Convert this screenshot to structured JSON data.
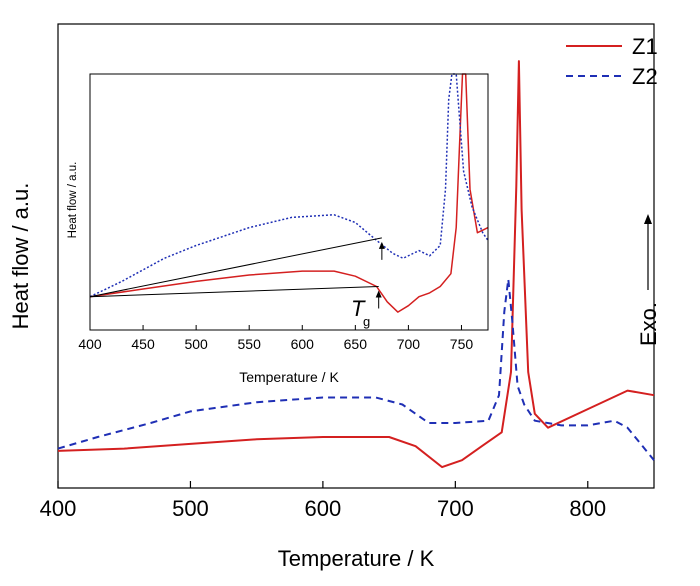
{
  "chart_data": [
    {
      "type": "line",
      "title": "",
      "xlabel": "Temperature / K",
      "ylabel": "Heat flow / a.u.",
      "xlim": [
        400,
        850
      ],
      "ylim": [
        0,
        100
      ],
      "x_ticks": [
        "400",
        "500",
        "600",
        "700",
        "800"
      ],
      "legend": {
        "position": "top-right"
      },
      "annotation": {
        "text": "Exo.",
        "arrow": "up"
      },
      "series": [
        {
          "name": "Z1",
          "color": "#d42020",
          "dash": "solid",
          "points": [
            [
              400,
              8
            ],
            [
              450,
              8.5
            ],
            [
              500,
              9.5
            ],
            [
              550,
              10.5
            ],
            [
              600,
              11
            ],
            [
              650,
              11
            ],
            [
              670,
              9
            ],
            [
              690,
              4.5
            ],
            [
              705,
              6
            ],
            [
              720,
              9
            ],
            [
              735,
              12
            ],
            [
              742,
              25
            ],
            [
              746,
              65
            ],
            [
              748,
              92
            ],
            [
              750,
              60
            ],
            [
              755,
              25
            ],
            [
              760,
              16
            ],
            [
              770,
              13
            ],
            [
              800,
              17
            ],
            [
              830,
              21
            ],
            [
              850,
              20
            ]
          ]
        },
        {
          "name": "Z2",
          "color": "#1f2fb5",
          "dash": "dashed",
          "points": [
            [
              400,
              8.5
            ],
            [
              430,
              11
            ],
            [
              470,
              14
            ],
            [
              500,
              16.5
            ],
            [
              550,
              18.5
            ],
            [
              600,
              19.5
            ],
            [
              640,
              19.5
            ],
            [
              660,
              18
            ],
            [
              680,
              14
            ],
            [
              700,
              14
            ],
            [
              725,
              14.5
            ],
            [
              733,
              20
            ],
            [
              737,
              38
            ],
            [
              740,
              45
            ],
            [
              743,
              36
            ],
            [
              747,
              22
            ],
            [
              752,
              18
            ],
            [
              760,
              14.5
            ],
            [
              780,
              13.5
            ],
            [
              800,
              13.5
            ],
            [
              820,
              14.5
            ],
            [
              830,
              13
            ],
            [
              850,
              6
            ]
          ]
        }
      ]
    },
    {
      "type": "line",
      "title": "",
      "xlabel": "Temperature / K",
      "ylabel": "Heat flow / a.u.",
      "xlim": [
        400,
        775
      ],
      "ylim": [
        0,
        100
      ],
      "x_ticks": [
        "400",
        "450",
        "500",
        "550",
        "600",
        "650",
        "700",
        "750"
      ],
      "annotations": [
        {
          "text": "T",
          "subscript": "g",
          "x": 670
        }
      ],
      "series": [
        {
          "name": "Z1",
          "color": "#d42020",
          "dash": "solid",
          "points": [
            [
              400,
              13
            ],
            [
              450,
              16
            ],
            [
              500,
              19
            ],
            [
              550,
              21.5
            ],
            [
              600,
              23
            ],
            [
              630,
              23
            ],
            [
              650,
              21
            ],
            [
              670,
              17
            ],
            [
              680,
              11
            ],
            [
              690,
              7
            ],
            [
              700,
              9.5
            ],
            [
              710,
              13
            ],
            [
              720,
              14.5
            ],
            [
              730,
              17
            ],
            [
              740,
              22
            ],
            [
              745,
              40
            ],
            [
              748,
              70
            ],
            [
              751,
              100
            ],
            [
              754,
              100
            ],
            [
              758,
              55
            ],
            [
              765,
              38
            ],
            [
              770,
              39
            ],
            [
              775,
              40
            ]
          ]
        },
        {
          "name": "Z2",
          "color": "#1f2fb5",
          "dash": "dotted",
          "points": [
            [
              400,
              13
            ],
            [
              430,
              19
            ],
            [
              470,
              28
            ],
            [
              500,
              33
            ],
            [
              550,
              40
            ],
            [
              590,
              44
            ],
            [
              630,
              45
            ],
            [
              650,
              42
            ],
            [
              670,
              35
            ],
            [
              685,
              30
            ],
            [
              695,
              28
            ],
            [
              710,
              31
            ],
            [
              720,
              29
            ],
            [
              730,
              33
            ],
            [
              735,
              55
            ],
            [
              738,
              90
            ],
            [
              741,
              100
            ],
            [
              745,
              100
            ],
            [
              752,
              62
            ],
            [
              760,
              48
            ],
            [
              770,
              38
            ],
            [
              775,
              35
            ]
          ]
        }
      ],
      "baselines": [
        {
          "series": "Z1",
          "from": [
            400,
            13
          ],
          "to": [
            672,
            17
          ]
        },
        {
          "series": "Z2",
          "from": [
            400,
            13
          ],
          "to": [
            675,
            36
          ]
        }
      ]
    }
  ]
}
